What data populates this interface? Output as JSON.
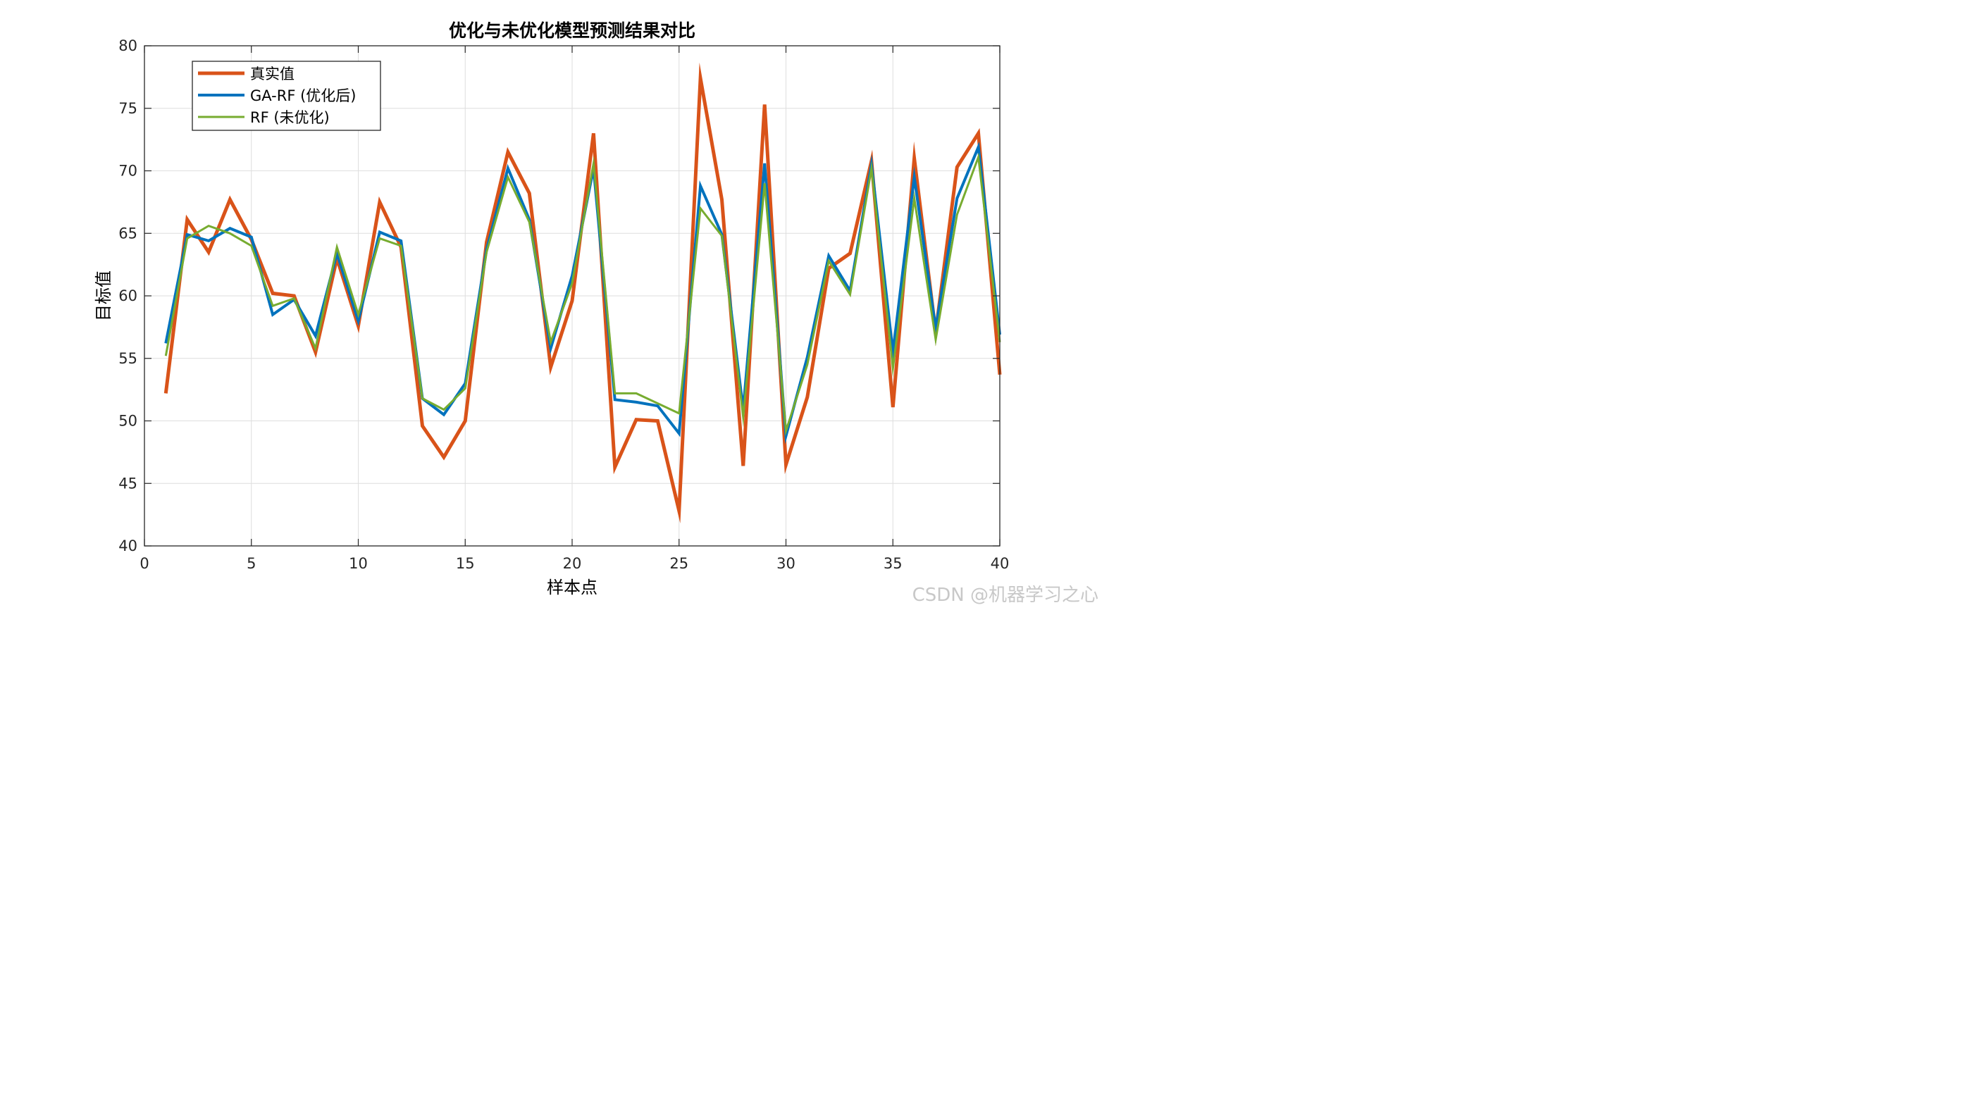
{
  "chart_data": {
    "type": "line",
    "title": "优化与未优化模型预测结果对比",
    "xlabel": "样本点",
    "ylabel": "目标值",
    "xlim": [
      0,
      40
    ],
    "ylim": [
      40,
      80
    ],
    "xticks": [
      0,
      5,
      10,
      15,
      20,
      25,
      30,
      35,
      40
    ],
    "yticks": [
      40,
      45,
      50,
      55,
      60,
      65,
      70,
      75,
      80
    ],
    "grid": true,
    "legend_position": "top-left",
    "x": [
      1,
      2,
      3,
      4,
      5,
      6,
      7,
      8,
      9,
      10,
      11,
      12,
      13,
      14,
      15,
      16,
      17,
      18,
      19,
      20,
      21,
      22,
      23,
      24,
      25,
      26,
      27,
      28,
      29,
      30,
      31,
      32,
      33,
      34,
      35,
      36,
      37,
      38,
      39,
      40
    ],
    "series": [
      {
        "name": "真实值",
        "color": "#D95319",
        "values": [
          52.2,
          66.1,
          63.5,
          67.7,
          64.5,
          60.2,
          60.0,
          55.5,
          63.0,
          57.6,
          67.5,
          63.9,
          49.6,
          47.1,
          50.0,
          64.3,
          71.5,
          68.2,
          54.3,
          59.6,
          73.0,
          46.3,
          50.1,
          50.0,
          42.8,
          77.4,
          67.7,
          46.4,
          75.3,
          46.5,
          51.9,
          62.2,
          63.4,
          70.8,
          51.1,
          71.0,
          57.1,
          70.3,
          73.0,
          53.7
        ]
      },
      {
        "name": "GA-RF (优化后)",
        "color": "#0072BD",
        "values": [
          56.2,
          64.9,
          64.4,
          65.4,
          64.7,
          58.5,
          59.7,
          56.8,
          63.4,
          58.0,
          65.1,
          64.4,
          51.8,
          50.5,
          53.0,
          63.7,
          70.2,
          66.1,
          55.8,
          61.6,
          70.2,
          51.7,
          51.5,
          51.2,
          49.0,
          68.8,
          64.9,
          50.9,
          70.6,
          48.8,
          55.1,
          63.2,
          60.4,
          70.5,
          55.5,
          69.5,
          57.4,
          67.8,
          71.9,
          56.9
        ]
      },
      {
        "name": "RF (未优化)",
        "color": "#77AC30",
        "values": [
          55.2,
          64.6,
          65.6,
          65.0,
          64.0,
          59.2,
          59.8,
          55.8,
          63.9,
          58.5,
          64.6,
          64.0,
          51.8,
          50.9,
          52.6,
          63.5,
          69.5,
          65.9,
          56.3,
          61.0,
          70.6,
          52.2,
          52.2,
          51.4,
          50.6,
          67.0,
          64.8,
          50.3,
          69.0,
          49.2,
          54.5,
          62.8,
          60.1,
          70.2,
          54.2,
          67.8,
          56.5,
          66.5,
          71.1,
          56.3
        ]
      }
    ]
  },
  "watermark": "CSDN @机器学习之心"
}
